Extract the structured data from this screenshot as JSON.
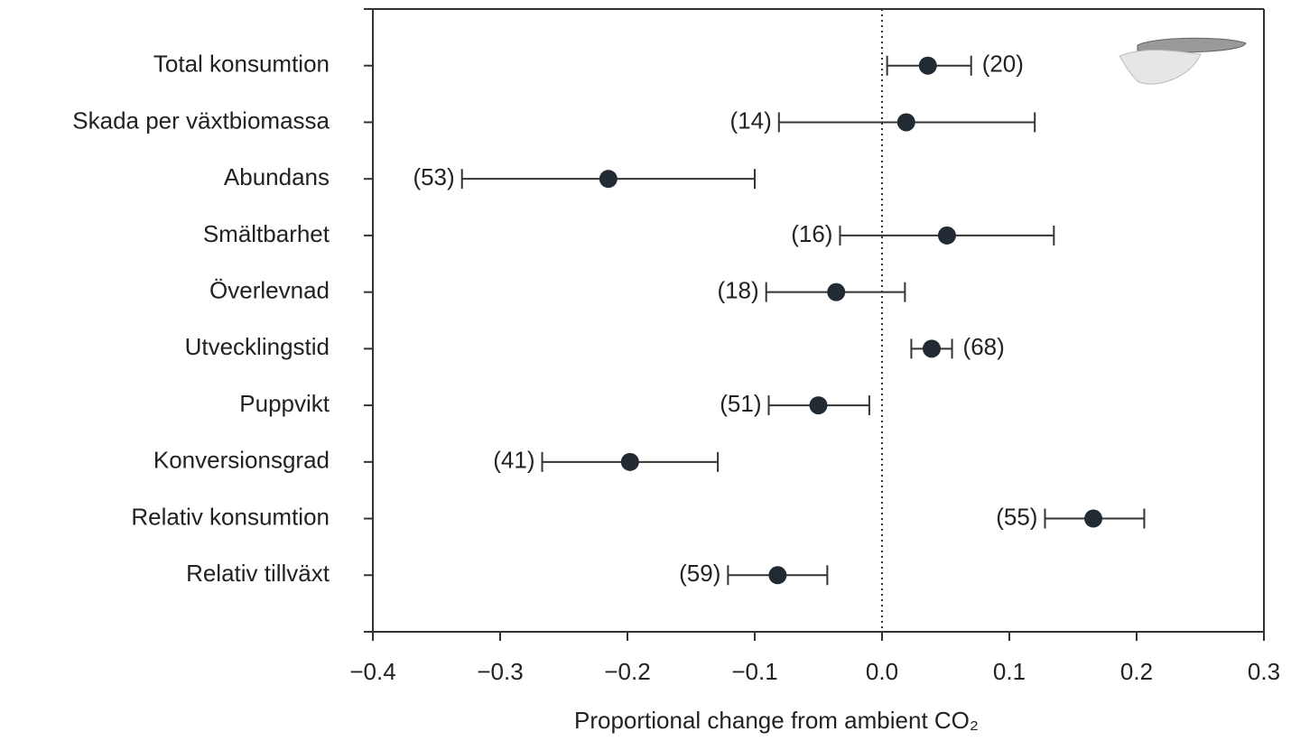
{
  "chart_data": {
    "type": "forest",
    "x_label": "Proportional change from ambient CO₂",
    "categories": [
      "Total konsumtion",
      "Skada per växtbiomassa",
      "Abundans",
      "Smältbarhet",
      "Överlevnad",
      "Utvecklingstid",
      "Puppvikt",
      "Konversionsgrad",
      "Relativ konsumtion",
      "Relativ tillväxt"
    ],
    "series": [
      {
        "color": "#222b33",
        "values": [
          0.036,
          0.019,
          -0.215,
          0.051,
          -0.036,
          0.039,
          -0.05,
          -0.198,
          0.166,
          -0.082
        ],
        "lower": [
          0.004,
          -0.081,
          -0.33,
          -0.033,
          -0.091,
          0.023,
          -0.089,
          -0.267,
          0.128,
          -0.121
        ],
        "upper": [
          0.07,
          0.12,
          -0.1,
          0.135,
          0.018,
          0.055,
          -0.01,
          -0.129,
          0.206,
          -0.043
        ],
        "sample_sizes": [
          "(20)",
          "(14)",
          "(53)",
          "(16)",
          "(18)",
          "(68)",
          "(51)",
          "(41)",
          "(55)",
          "(59)"
        ]
      }
    ],
    "xlim": [
      -0.4,
      0.3
    ],
    "xticks": [
      {
        "value": -0.4,
        "label": "−0.4"
      },
      {
        "value": -0.3,
        "label": "−0.3"
      },
      {
        "value": -0.2,
        "label": "−0.2"
      },
      {
        "value": -0.1,
        "label": "−0.1"
      },
      {
        "value": 0,
        "label": "0.0"
      },
      0.1,
      0.2,
      0.3
    ],
    "reference_line": 0
  }
}
